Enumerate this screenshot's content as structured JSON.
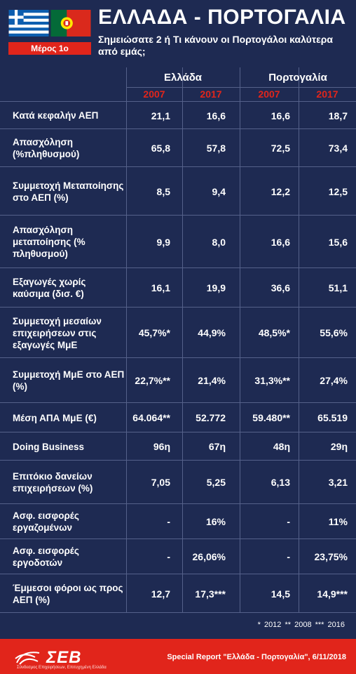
{
  "header": {
    "title": "ΕΛΛΑΔΑ - ΠΟΡΤΟΓΑΛΙΑ",
    "subtitle": "Σημειώσατε 2  ή  Τι κάνουν οι Πορτογάλοι καλύτερα από εμάς;",
    "part_label": "Μέρος 1ο",
    "colors": {
      "accent": "#e1251b",
      "background": "#1e2a52"
    }
  },
  "table": {
    "countries": [
      "Ελλάδα",
      "Πορτογαλία"
    ],
    "years": [
      "2007",
      "2017",
      "2007",
      "2017"
    ],
    "rows": [
      {
        "label": "Κατά κεφαλήν ΑΕΠ",
        "values": [
          "21,1",
          "16,6",
          "16,6",
          "18,7"
        ]
      },
      {
        "label": "Απασχόληση (%πληθυσμού)",
        "values": [
          "65,8",
          "57,8",
          "72,5",
          "73,4"
        ]
      },
      {
        "label": "Συμμετοχή Μεταποίησης στο ΑΕΠ (%)",
        "values": [
          "8,5",
          "9,4",
          "12,2",
          "12,5"
        ]
      },
      {
        "label": "Απασχόληση μεταποίησης (% πληθυσμού)",
        "values": [
          "9,9",
          "8,0",
          "16,6",
          "15,6"
        ]
      },
      {
        "label": "Εξαγωγές χωρίς καύσιμα (δισ. €)",
        "values": [
          "16,1",
          "19,9",
          "36,6",
          "51,1"
        ]
      },
      {
        "label": "Συμμετοχή μεσαίων επιχειρήσεων στις εξαγωγές ΜμΕ",
        "values": [
          "45,7%*",
          "44,9%",
          "48,5%*",
          "55,6%"
        ]
      },
      {
        "label": "Συμμετοχή ΜμΕ στο ΑΕΠ (%)",
        "values": [
          "22,7%**",
          "21,4%",
          "31,3%**",
          "27,4%"
        ]
      },
      {
        "label": "Μέση ΑΠΑ ΜμΕ (€)",
        "values": [
          "64.064**",
          "52.772",
          "59.480**",
          "65.519"
        ]
      },
      {
        "label": "Doing Business",
        "values": [
          "96η",
          "67η",
          "48η",
          "29η"
        ]
      },
      {
        "label": "Επιτόκιο δανείων επιχειρήσεων (%)",
        "values": [
          "7,05",
          "5,25",
          "6,13",
          "3,21"
        ]
      },
      {
        "label": "Ασφ. εισφορές εργαζομένων",
        "values": [
          "-",
          "16%",
          "-",
          "11%"
        ]
      },
      {
        "label": "Ασφ. εισφορές εργοδοτών",
        "values": [
          "-",
          "26,06%",
          "-",
          "23,75%"
        ]
      },
      {
        "label": "Έμμεσοι φόροι ως προς ΑΕΠ (%)",
        "values": [
          "12,7",
          "17,3***",
          "14,5",
          "14,9***"
        ]
      }
    ],
    "notes": "* 2012   ** 2008   *** 2016"
  },
  "footer": {
    "logo": "ΣΕΒ",
    "logo_tagline": "Σύνδεσμος Επιχειρήσεων, Επιτυχημένη Ελλάδα",
    "report": "Special Report \"Ελλάδα - Πορτογαλία\", 6/11/2018"
  }
}
